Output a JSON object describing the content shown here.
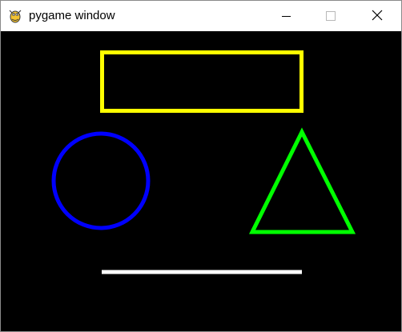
{
  "window": {
    "title": "pygame window",
    "controls": {
      "minimize_icon": "minimize-icon",
      "maximize_icon": "maximize-icon",
      "close_icon": "close-icon"
    }
  },
  "canvas": {
    "background": "#000000",
    "shapes": [
      {
        "kind": "rectangle-outline",
        "color": "#ffff00"
      },
      {
        "kind": "circle-outline",
        "color": "#0000ff"
      },
      {
        "kind": "triangle-outline",
        "color": "#00ff00"
      },
      {
        "kind": "line",
        "color": "#ffffff"
      }
    ]
  }
}
